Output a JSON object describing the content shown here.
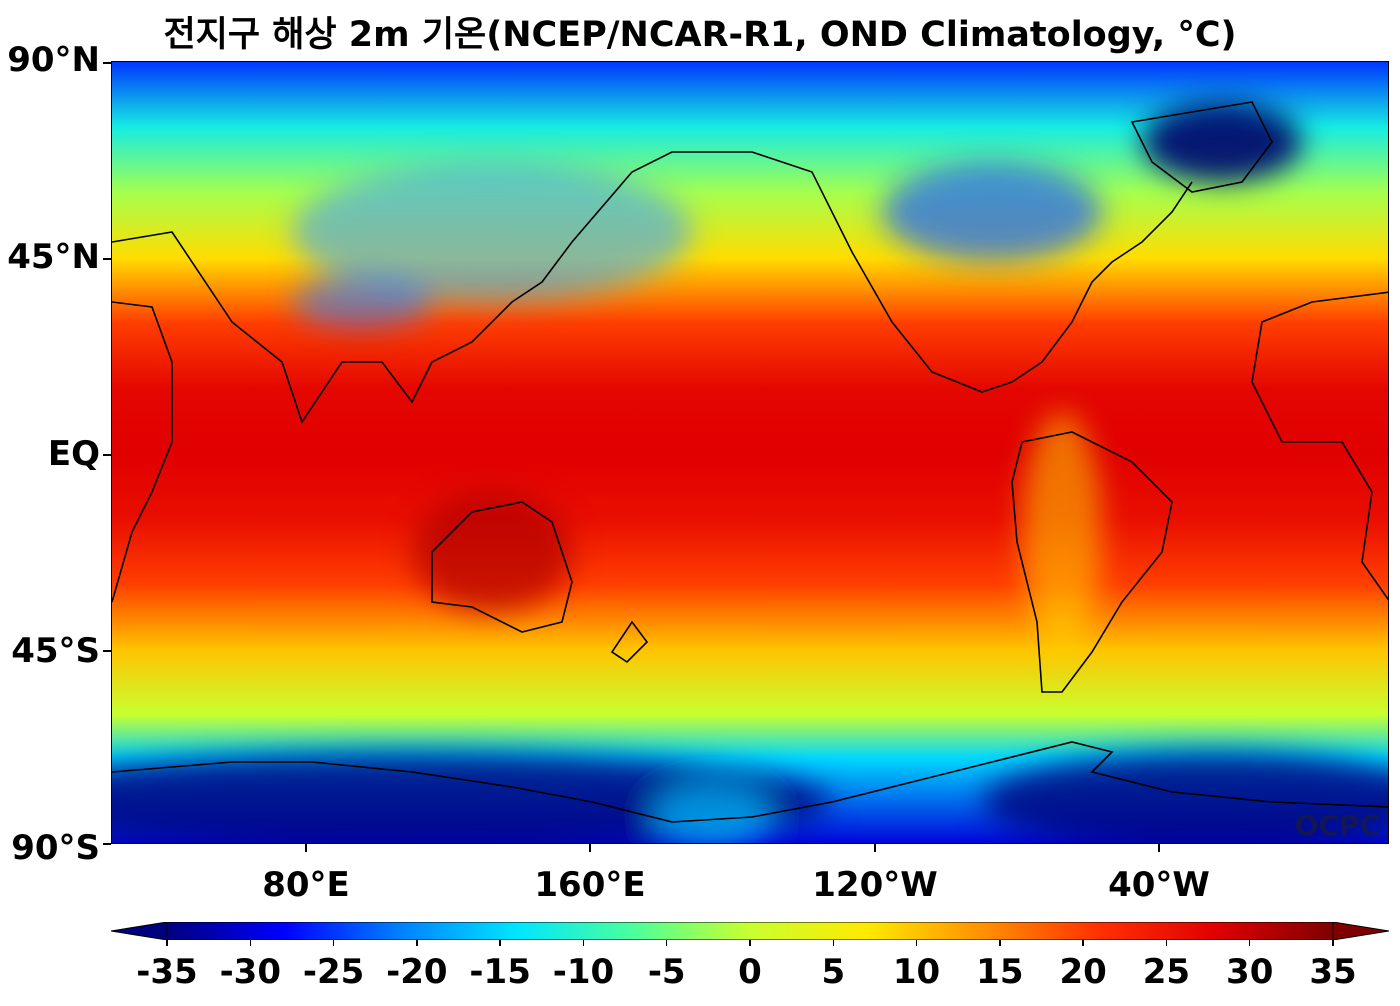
{
  "title": "전지구 해상 2m 기온(NCEP/NCAR-R1, OND Climatology, °C)",
  "y_axis": {
    "ticks": [
      "90°N",
      "45°N",
      "EQ",
      "45°S",
      "90°S"
    ]
  },
  "x_axis": {
    "ticks": [
      "80°E",
      "160°E",
      "120°W",
      "40°W"
    ]
  },
  "credit": "OCPC",
  "colorbar": {
    "ticks": [
      "-35",
      "-30",
      "-25",
      "-20",
      "-15",
      "-10",
      "-5",
      "0",
      "5",
      "10",
      "15",
      "20",
      "25",
      "30",
      "35"
    ],
    "colors": [
      "#00007f",
      "#0000ff",
      "#0080ff",
      "#00e5ff",
      "#4cff9a",
      "#c8ff30",
      "#ffea00",
      "#ff9000",
      "#ff3000",
      "#e00000",
      "#7f0000"
    ],
    "extend": "both"
  },
  "chart_data": {
    "type": "heatmap",
    "title": "전지구 해상 2m 기온(NCEP/NCAR-R1, OND Climatology, °C)",
    "variable": "2m air temperature",
    "units": "°C",
    "projection": "equirectangular, central longitude ~160°W",
    "lat_range": [
      -90,
      90
    ],
    "color_range": [
      -35,
      35
    ],
    "lat_profile": [
      {
        "lat": 90,
        "value": -25
      },
      {
        "lat": 75,
        "value": -12
      },
      {
        "lat": 60,
        "value": -2
      },
      {
        "lat": 45,
        "value": 8
      },
      {
        "lat": 30,
        "value": 20
      },
      {
        "lat": 15,
        "value": 27
      },
      {
        "lat": 0,
        "value": 28
      },
      {
        "lat": -15,
        "value": 26
      },
      {
        "lat": -30,
        "value": 20
      },
      {
        "lat": -45,
        "value": 10
      },
      {
        "lat": -60,
        "value": 0
      },
      {
        "lat": -70,
        "value": -15
      },
      {
        "lat": -90,
        "value": -30
      }
    ]
  }
}
